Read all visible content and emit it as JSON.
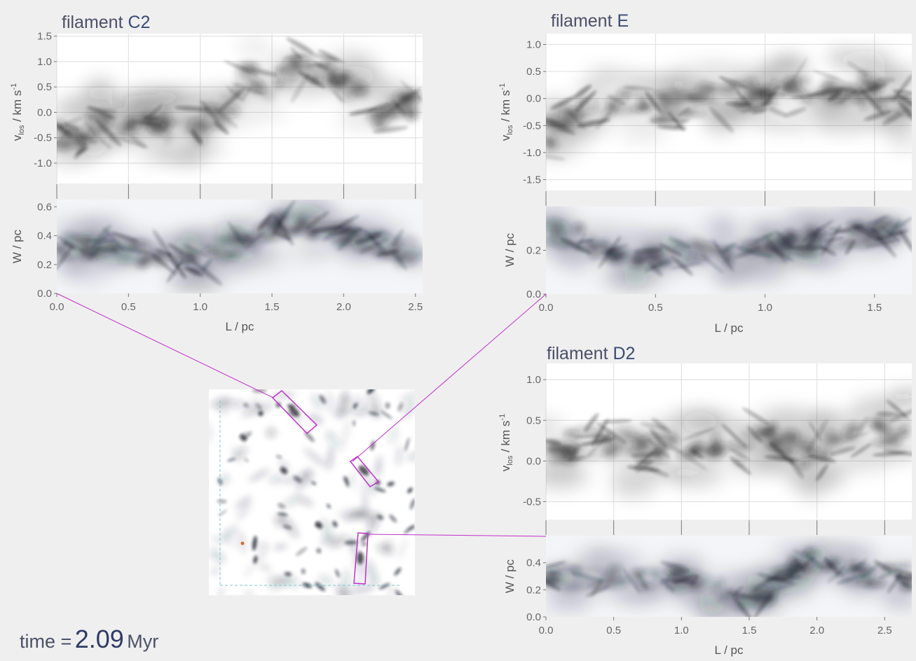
{
  "caption": {
    "prefix": "time =",
    "value": "2.09",
    "unit": "Myr"
  },
  "colors": {
    "background": "#efefef",
    "connector": "#c030c8",
    "density_dark": "#141a28",
    "velocity_dark": "#1a1a1a",
    "axis": "#666666",
    "title_key": "#3a4a78"
  },
  "chart_data": [
    {
      "type": "heatmap",
      "panel": "velocity",
      "filament": "C2",
      "title_prefix": "filament",
      "title_key": "C2",
      "xlabel": "",
      "ylabel": "v_los / km s^-1",
      "xlim": [
        0.0,
        2.55
      ],
      "ylim": [
        -1.4,
        1.55
      ],
      "yticks": [
        "1.5",
        "1.0",
        "0.5",
        "0.0",
        "-0.5",
        "-1.0"
      ],
      "xticks": [
        0.0,
        0.5,
        1.0,
        1.5,
        2.0,
        2.5
      ],
      "grid": true,
      "profile": [
        [
          0.0,
          -0.35
        ],
        [
          0.15,
          -0.5
        ],
        [
          0.3,
          -0.2
        ],
        [
          0.45,
          -0.1
        ],
        [
          0.6,
          -0.3
        ],
        [
          0.8,
          -0.3
        ],
        [
          1.0,
          -0.35
        ],
        [
          1.2,
          0.2
        ],
        [
          1.35,
          0.8
        ],
        [
          1.5,
          0.5
        ],
        [
          1.65,
          0.9
        ],
        [
          1.8,
          0.9
        ],
        [
          1.95,
          0.6
        ],
        [
          2.1,
          0.4
        ],
        [
          2.25,
          -0.1
        ],
        [
          2.4,
          0.2
        ],
        [
          2.55,
          0.1
        ]
      ]
    },
    {
      "type": "heatmap",
      "panel": "density",
      "filament": "C2",
      "xlabel": "L / pc",
      "ylabel": "W / pc",
      "xlim": [
        0.0,
        2.55
      ],
      "ylim": [
        0.0,
        0.65
      ],
      "xticks": [
        "0.0",
        "0.5",
        "1.0",
        "1.5",
        "2.0",
        "2.5"
      ],
      "yticks": [
        "0.6",
        "0.4",
        "0.2",
        "0.0"
      ],
      "profile": [
        [
          0.0,
          0.32
        ],
        [
          0.2,
          0.3
        ],
        [
          0.35,
          0.33
        ],
        [
          0.55,
          0.27
        ],
        [
          0.75,
          0.25
        ],
        [
          1.0,
          0.22
        ],
        [
          1.2,
          0.3
        ],
        [
          1.4,
          0.4
        ],
        [
          1.6,
          0.48
        ],
        [
          1.8,
          0.45
        ],
        [
          2.0,
          0.42
        ],
        [
          2.2,
          0.35
        ],
        [
          2.4,
          0.3
        ],
        [
          2.55,
          0.3
        ]
      ]
    },
    {
      "type": "heatmap",
      "panel": "velocity",
      "filament": "E",
      "title_prefix": "filament",
      "title_key": "E",
      "xlabel": "",
      "ylabel": "v_los / km s^-1",
      "xlim": [
        0.0,
        1.67
      ],
      "ylim": [
        -1.7,
        1.2
      ],
      "yticks": [
        "1.0",
        "0.5",
        "0.0",
        "-0.5",
        "-1.0",
        "-1.5"
      ],
      "xticks": [
        0.0,
        0.5,
        1.0,
        1.5
      ],
      "grid": true,
      "profile": [
        [
          0.0,
          -0.7
        ],
        [
          0.1,
          -0.3
        ],
        [
          0.2,
          -0.1
        ],
        [
          0.35,
          -0.1
        ],
        [
          0.5,
          -0.15
        ],
        [
          0.7,
          -0.05
        ],
        [
          0.9,
          0.05
        ],
        [
          1.1,
          0.1
        ],
        [
          1.3,
          0.15
        ],
        [
          1.5,
          0.15
        ],
        [
          1.67,
          -0.3
        ]
      ]
    },
    {
      "type": "heatmap",
      "panel": "density",
      "filament": "E",
      "xlabel": "L / pc",
      "ylabel": "W / pc",
      "xlim": [
        0.0,
        1.67
      ],
      "ylim": [
        0.0,
        0.4
      ],
      "xticks": [
        "0.0",
        "0.5",
        "1.0",
        "1.5"
      ],
      "yticks": [
        "0.2",
        "0.0"
      ],
      "profile": [
        [
          0.0,
          0.28
        ],
        [
          0.15,
          0.25
        ],
        [
          0.3,
          0.2
        ],
        [
          0.5,
          0.17
        ],
        [
          0.7,
          0.19
        ],
        [
          0.9,
          0.2
        ],
        [
          1.1,
          0.22
        ],
        [
          1.3,
          0.26
        ],
        [
          1.5,
          0.28
        ],
        [
          1.67,
          0.3
        ]
      ]
    },
    {
      "type": "heatmap",
      "panel": "velocity",
      "filament": "D2",
      "title_prefix": "filament",
      "title_key": "D2",
      "xlabel": "",
      "ylabel": "v_los / km s^-1",
      "xlim": [
        0.0,
        2.7
      ],
      "ylim": [
        -0.72,
        1.2
      ],
      "yticks": [
        "1.0",
        "0.5",
        "0.0",
        "-0.5"
      ],
      "xticks": [
        0.0,
        0.5,
        1.0,
        1.5,
        2.0,
        2.5
      ],
      "grid": true,
      "profile": [
        [
          0.0,
          0.15
        ],
        [
          0.2,
          0.2
        ],
        [
          0.4,
          0.2
        ],
        [
          0.55,
          0.3
        ],
        [
          0.65,
          0.1
        ],
        [
          0.8,
          0.15
        ],
        [
          1.0,
          0.2
        ],
        [
          1.2,
          0.1
        ],
        [
          1.4,
          0.15
        ],
        [
          1.55,
          0.3
        ],
        [
          1.75,
          0.25
        ],
        [
          1.95,
          0.05
        ],
        [
          2.1,
          0.2
        ],
        [
          2.3,
          0.25
        ],
        [
          2.5,
          0.35
        ],
        [
          2.7,
          0.4
        ]
      ]
    },
    {
      "type": "heatmap",
      "panel": "density",
      "filament": "D2",
      "xlabel": "L / pc",
      "ylabel": "W / pc",
      "xlim": [
        0.0,
        2.7
      ],
      "ylim": [
        0.0,
        0.6
      ],
      "xticks": [
        "0.0",
        "0.5",
        "1.0",
        "1.5",
        "2.0",
        "2.5"
      ],
      "yticks": [
        "0.4",
        "0.2",
        "0.0"
      ],
      "profile": [
        [
          0.0,
          0.3
        ],
        [
          0.3,
          0.28
        ],
        [
          0.6,
          0.27
        ],
        [
          0.9,
          0.3
        ],
        [
          1.2,
          0.22
        ],
        [
          1.45,
          0.12
        ],
        [
          1.7,
          0.2
        ],
        [
          1.9,
          0.45
        ],
        [
          2.1,
          0.35
        ],
        [
          2.4,
          0.3
        ],
        [
          2.7,
          0.3
        ]
      ]
    }
  ]
}
